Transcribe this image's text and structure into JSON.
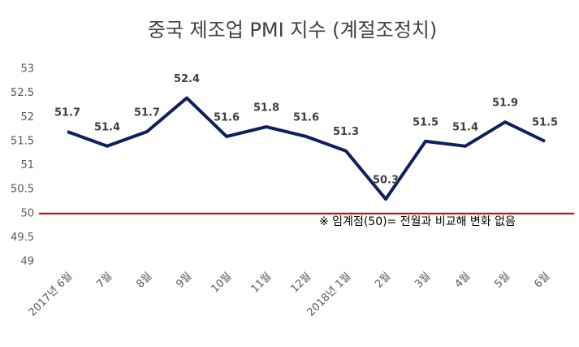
{
  "chart_data": {
    "type": "line",
    "title": "중국 제조업 PMI 지수 (계절조정치)",
    "categories": [
      "2017년 6월",
      "7월",
      "8월",
      "9월",
      "10월",
      "11월",
      "12월",
      "2018년 1월",
      "2월",
      "3월",
      "4월",
      "5월",
      "6월"
    ],
    "series": [
      {
        "name": "PMI",
        "color": "#0f1f5c",
        "values": [
          51.7,
          51.4,
          51.7,
          52.4,
          51.6,
          51.8,
          51.6,
          51.3,
          50.3,
          51.5,
          51.4,
          51.9,
          51.5
        ]
      }
    ],
    "ylim": [
      49,
      53
    ],
    "yticks": [
      49,
      49.5,
      50,
      50.5,
      51,
      51.5,
      52,
      52.5,
      53
    ],
    "reference_line": {
      "value": 50,
      "color": "#c00000"
    },
    "annotation": "※ 임계점(50)= 전월과 비교해 변화 없음"
  }
}
